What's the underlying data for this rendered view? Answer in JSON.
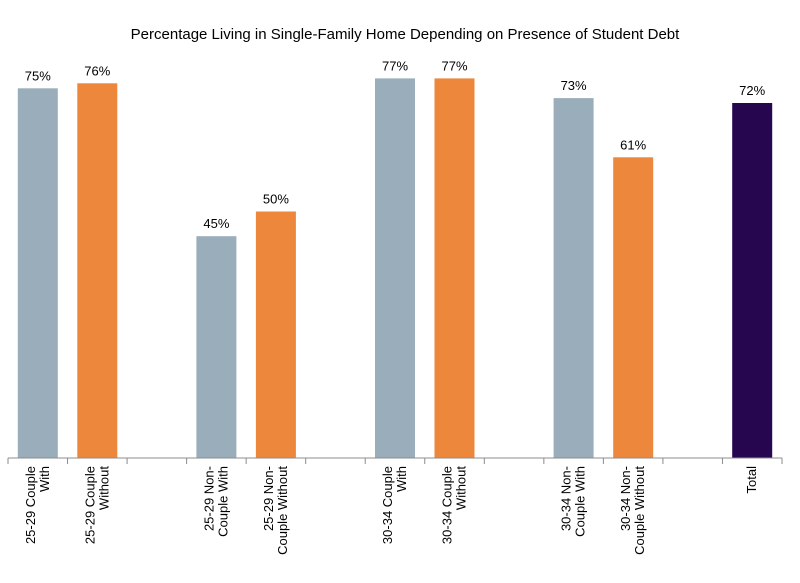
{
  "chart_data": {
    "type": "bar",
    "title": "Percentage Living in Single-Family Home Depending on Presence of Student Debt",
    "xlabel": "",
    "ylabel": "",
    "ylim": [
      0,
      100
    ],
    "grid": false,
    "unit": "%",
    "categories": [
      [
        "25-29 Couple",
        "With"
      ],
      [
        "25-29 Couple",
        "Without"
      ],
      [],
      [
        "25-29 Non-",
        "Couple With"
      ],
      [
        "25-29 Non-",
        "Couple Without"
      ],
      [],
      [
        "30-34 Couple",
        "With"
      ],
      [
        "30-34 Couple",
        "Without"
      ],
      [],
      [
        "30-34 Non-",
        "Couple With"
      ],
      [
        "30-34 Non-",
        "Couple Without"
      ],
      [],
      [
        "Total"
      ]
    ],
    "values": [
      75,
      76,
      null,
      45,
      50,
      null,
      77,
      77,
      null,
      73,
      61,
      null,
      72
    ],
    "labels": [
      "75%",
      "76%",
      "",
      "45%",
      "50%",
      "",
      "77%",
      "77%",
      "",
      "73%",
      "61%",
      "",
      "72%"
    ],
    "series_colors": {
      "with": "#9AADBA",
      "without": "#ED873B",
      "total": "#25064F"
    },
    "bar_kinds": [
      "with",
      "without",
      "",
      "with",
      "without",
      "",
      "with",
      "without",
      "",
      "with",
      "without",
      "",
      "total"
    ]
  }
}
